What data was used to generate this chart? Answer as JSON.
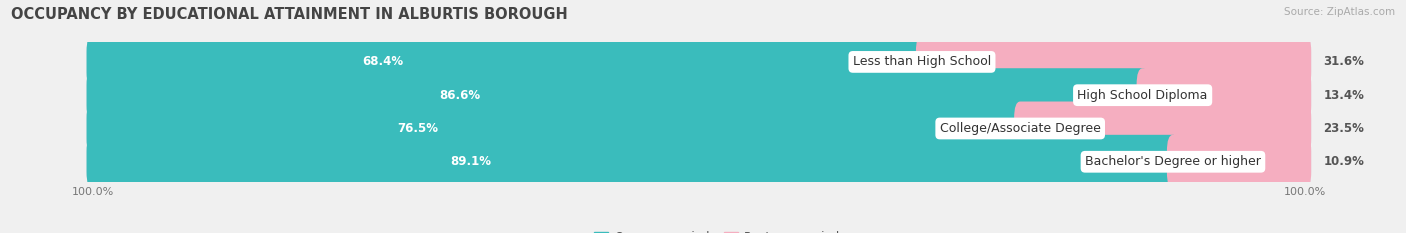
{
  "title": "OCCUPANCY BY EDUCATIONAL ATTAINMENT IN ALBURTIS BOROUGH",
  "source": "Source: ZipAtlas.com",
  "categories": [
    "Less than High School",
    "High School Diploma",
    "College/Associate Degree",
    "Bachelor's Degree or higher"
  ],
  "owner_values": [
    68.4,
    86.6,
    76.5,
    89.1
  ],
  "renter_values": [
    31.6,
    13.4,
    23.5,
    10.9
  ],
  "owner_color": "#3abcbc",
  "renter_color": "#f07090",
  "renter_color_light": "#f5aec0",
  "label_color_owner": "#ffffff",
  "background_color": "#f0f0f0",
  "bar_bg_color": "#e0e0e8",
  "bar_height": 0.62,
  "title_fontsize": 10.5,
  "bar_label_fontsize": 8.5,
  "cat_label_fontsize": 9,
  "tick_fontsize": 8,
  "legend_fontsize": 8.5,
  "source_fontsize": 7.5
}
